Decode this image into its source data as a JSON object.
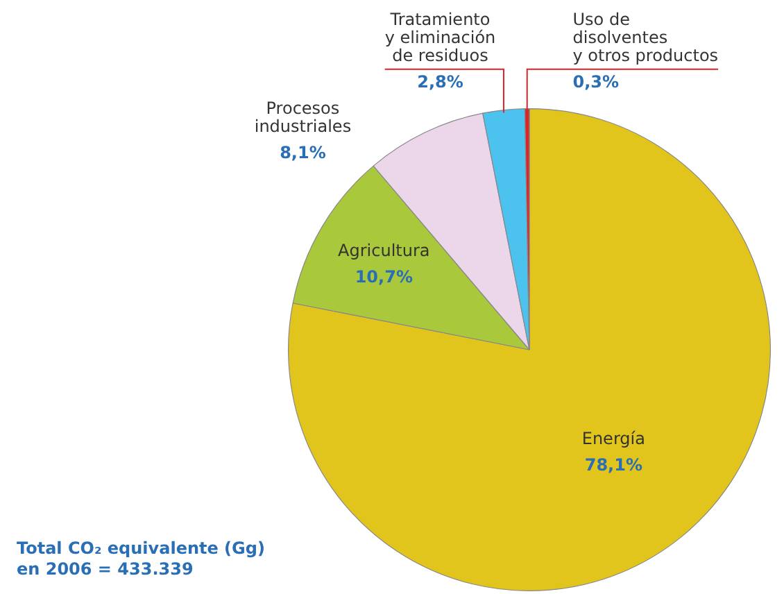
{
  "chart_data": {
    "type": "pie",
    "categories": [
      "Energía",
      "Agricultura",
      "Procesos\nindustriales",
      "Tratamiento\ny eliminación\nde residuos",
      "Uso de\ndisolventes\ny otros productos"
    ],
    "values": [
      78.1,
      10.7,
      8.1,
      2.8,
      0.3
    ],
    "value_labels": [
      "78,1%",
      "10,7%",
      "8,1%",
      "2,8%",
      "0,3%"
    ],
    "colors": [
      "#e2c51c",
      "#a9c83c",
      "#ecd6ea",
      "#4cc2ee",
      "#d8262a"
    ],
    "annotations": [
      "Total CO₂ equivalente (Gg)\nen 2006 = 433.339"
    ]
  }
}
